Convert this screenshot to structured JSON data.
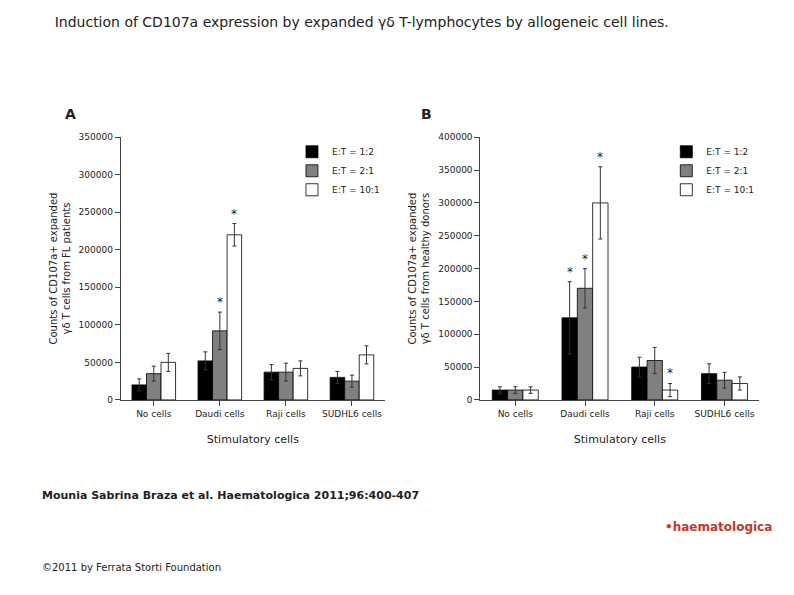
{
  "title": "Induction of CD107a expression by expanded γδ T-lymphocytes by allogeneic cell lines.",
  "annotations": [
    {
      "text": "Mounia Sabrina Braza et al. Haematologica 2011;96:400-407"
    },
    {
      "text": "©2011 by Ferrata Storti Foundation"
    },
    {
      "text": "•haematologica",
      "color": "#c0392b"
    }
  ],
  "chart_data": [
    {
      "type": "bar",
      "title": "A",
      "xlabel": "Stimulatory cells",
      "ylabel": "Counts of CD107a+ expanded\nγδ T cells from FL patients",
      "categories": [
        "No cells",
        "Daudi cells",
        "Raji cells",
        "SUDHL6 cells"
      ],
      "series": [
        {
          "name": "E:T = 1:2",
          "color": "#000000",
          "values": [
            20000,
            52000,
            37000,
            30000
          ],
          "errors": [
            8000,
            12000,
            10000,
            8000
          ]
        },
        {
          "name": "E:T = 2:1",
          "color": "#808080",
          "values": [
            35000,
            92000,
            37000,
            25000
          ],
          "errors": [
            10000,
            25000,
            12000,
            8000
          ]
        },
        {
          "name": "E:T = 10:1",
          "color": "#ffffff",
          "values": [
            50000,
            220000,
            42000,
            60000
          ],
          "errors": [
            12000,
            15000,
            10000,
            12000
          ]
        }
      ],
      "annotations": [
        {
          "text": "*",
          "category": "Daudi cells",
          "series": "E:T = 2:1"
        },
        {
          "text": "*",
          "category": "Daudi cells",
          "series": "E:T = 10:1"
        }
      ],
      "ylim": [
        0,
        350000
      ],
      "yticks": [
        0,
        50000,
        100000,
        150000,
        200000,
        250000,
        300000,
        350000
      ],
      "grid": false,
      "legend": "upper right"
    },
    {
      "type": "bar",
      "title": "B",
      "xlabel": "Stimulatory cells",
      "ylabel": "Counts of CD107a+ expanded\nγδ T cells from healthy donors",
      "categories": [
        "No cells",
        "Daudi cells",
        "Raji cells",
        "SUDHL6 cells"
      ],
      "series": [
        {
          "name": "E:T = 1:2",
          "color": "#000000",
          "values": [
            15000,
            125000,
            50000,
            40000
          ],
          "errors": [
            5000,
            55000,
            15000,
            15000
          ]
        },
        {
          "name": "E:T = 2:1",
          "color": "#808080",
          "values": [
            15000,
            170000,
            60000,
            30000
          ],
          "errors": [
            5000,
            30000,
            20000,
            12000
          ]
        },
        {
          "name": "E:T = 10:1",
          "color": "#ffffff",
          "values": [
            15000,
            300000,
            15000,
            25000
          ],
          "errors": [
            5000,
            55000,
            10000,
            10000
          ]
        }
      ],
      "annotations": [
        {
          "text": "*",
          "category": "Daudi cells",
          "series": "E:T = 1:2"
        },
        {
          "text": "*",
          "category": "Daudi cells",
          "series": "E:T = 2:1"
        },
        {
          "text": "*",
          "category": "Daudi cells",
          "series": "E:T = 10:1"
        },
        {
          "text": "*",
          "category": "Raji cells",
          "series": "E:T = 10:1"
        }
      ],
      "ylim": [
        0,
        400000
      ],
      "yticks": [
        0,
        50000,
        100000,
        150000,
        200000,
        250000,
        300000,
        350000,
        400000
      ],
      "grid": false,
      "legend": "upper right"
    }
  ]
}
